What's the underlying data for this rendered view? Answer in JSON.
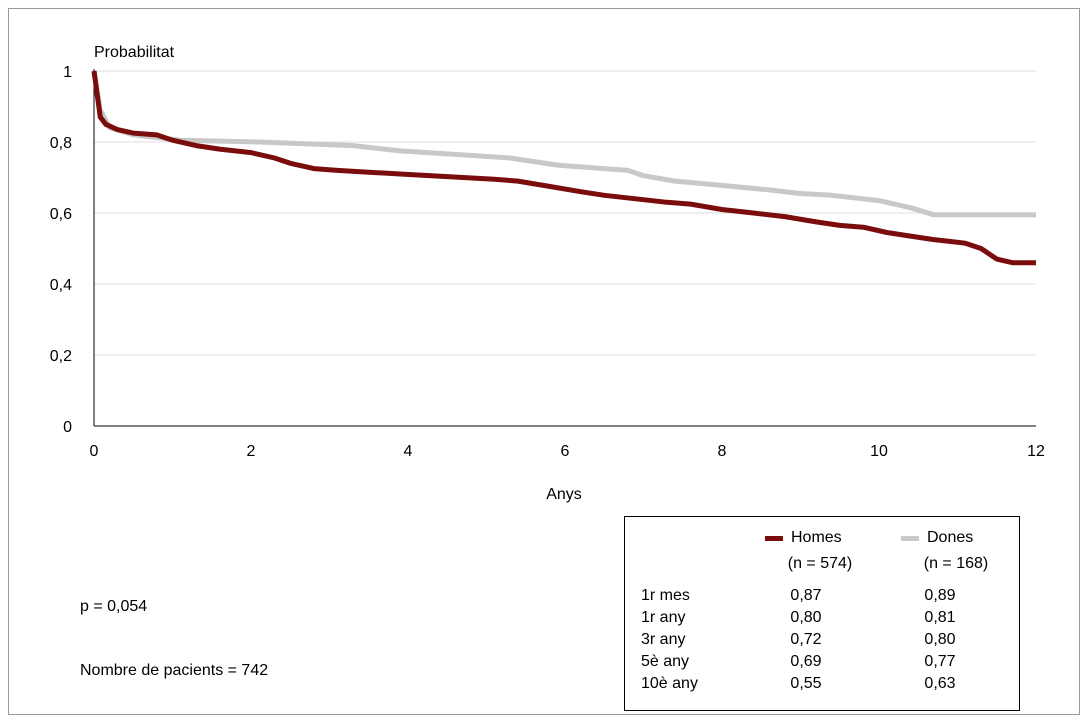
{
  "chart_data": {
    "type": "line",
    "title": "",
    "ylabel": "Probabilitat",
    "xlabel": "Anys",
    "xlim": [
      0,
      12
    ],
    "ylim": [
      0,
      1
    ],
    "x_ticks": [
      "0",
      "2",
      "4",
      "6",
      "8",
      "10",
      "12"
    ],
    "y_ticks": [
      "0",
      "0,2",
      "0,4",
      "0,6",
      "0,8",
      "1"
    ],
    "grid": "horizontal",
    "series": [
      {
        "name": "Homes",
        "color": "#7b0c0c",
        "x": [
          0,
          0.08,
          0.15,
          0.3,
          0.5,
          0.8,
          1.0,
          1.3,
          1.6,
          2.0,
          2.3,
          2.5,
          2.8,
          3.1,
          3.5,
          3.9,
          4.3,
          4.7,
          5.1,
          5.4,
          5.8,
          6.2,
          6.5,
          6.9,
          7.3,
          7.6,
          8.0,
          8.4,
          8.8,
          9.2,
          9.5,
          9.8,
          10.1,
          10.4,
          10.7,
          10.9,
          11.1,
          11.3,
          11.5,
          11.7,
          12.0
        ],
        "y": [
          1.0,
          0.87,
          0.85,
          0.835,
          0.825,
          0.82,
          0.805,
          0.79,
          0.78,
          0.77,
          0.755,
          0.74,
          0.725,
          0.72,
          0.715,
          0.71,
          0.705,
          0.7,
          0.695,
          0.69,
          0.675,
          0.66,
          0.65,
          0.64,
          0.63,
          0.625,
          0.61,
          0.6,
          0.59,
          0.575,
          0.565,
          0.56,
          0.545,
          0.535,
          0.525,
          0.52,
          0.515,
          0.5,
          0.47,
          0.46,
          0.46
        ]
      },
      {
        "name": "Dones",
        "color": "#c8c8c8",
        "x": [
          0,
          0.08,
          0.2,
          0.5,
          0.9,
          1.1,
          2.1,
          3.3,
          3.9,
          5.3,
          5.6,
          5.9,
          6.8,
          7.0,
          7.4,
          7.9,
          8.6,
          9.0,
          9.4,
          10.0,
          10.4,
          10.7,
          12.0
        ],
        "y": [
          1.0,
          0.89,
          0.84,
          0.82,
          0.81,
          0.805,
          0.8,
          0.79,
          0.775,
          0.755,
          0.745,
          0.735,
          0.72,
          0.705,
          0.69,
          0.68,
          0.665,
          0.655,
          0.65,
          0.635,
          0.615,
          0.595,
          0.595
        ]
      }
    ]
  },
  "annotations": {
    "p_value": "p = 0,054",
    "patients": "Nombre de pacients = 742"
  },
  "stats_table": {
    "series": [
      {
        "name": "Homes",
        "n": "(n = 574)",
        "color": "#7b0c0c"
      },
      {
        "name": "Dones",
        "n": "(n = 168)",
        "color": "#c8c8c8"
      }
    ],
    "rows": [
      {
        "label": "1r mes",
        "homes": "0,87",
        "dones": "0,89"
      },
      {
        "label": "1r any",
        "homes": "0,80",
        "dones": "0,81"
      },
      {
        "label": "3r any",
        "homes": "0,72",
        "dones": "0,80"
      },
      {
        "label": "5è any",
        "homes": "0,69",
        "dones": "0,77"
      },
      {
        "label": "10è any",
        "homes": "0,55",
        "dones": "0,63"
      }
    ]
  }
}
